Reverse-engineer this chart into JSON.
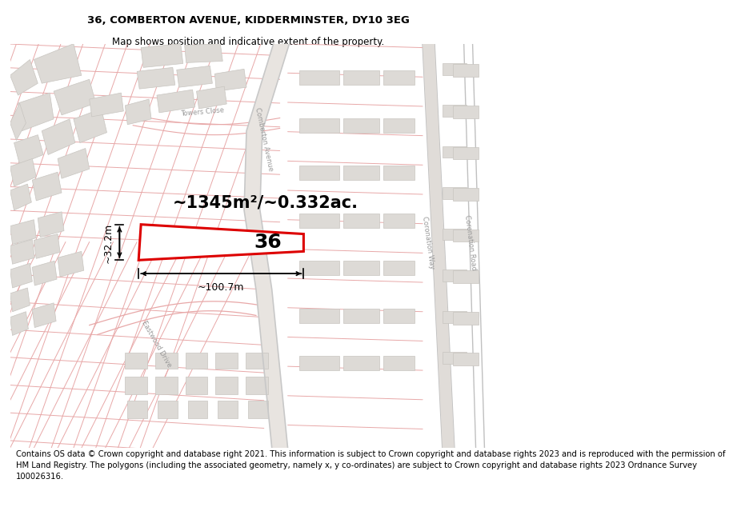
{
  "title": "36, COMBERTON AVENUE, KIDDERMINSTER, DY10 3EG",
  "subtitle": "Map shows position and indicative extent of the property.",
  "area_text": "~1345m²/~0.332ac.",
  "number_label": "36",
  "dim_width": "~100.7m",
  "dim_height": "~32.2m",
  "footer_lines": [
    "Contains OS data © Crown copyright and database right 2021. This information is subject to Crown copyright and database rights 2023 and is reproduced with the permission of",
    "HM Land Registry. The polygons (including the associated geometry, namely x, y co-ordinates) are subject to Crown copyright and database rights 2023 Ordnance Survey",
    "100026316."
  ],
  "map_bg": "#f5f2ef",
  "street_color": "#e8a8a8",
  "road_color": "#e8a8a8",
  "block_color": "#dddad6",
  "block_ec": "#c8c5c0",
  "property_color": "#dd0000",
  "title_fontsize": 9.5,
  "subtitle_fontsize": 8.5,
  "area_fontsize": 15,
  "number_fontsize": 18,
  "dim_fontsize": 9,
  "footer_fontsize": 7.2,
  "label_color": "#999999",
  "label_fontsize": 6
}
